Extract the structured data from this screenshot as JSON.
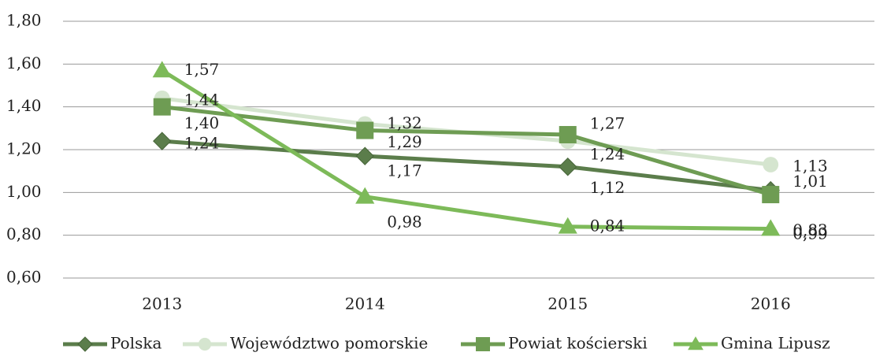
{
  "chart_data": {
    "type": "line",
    "categories": [
      "2013",
      "2014",
      "2015",
      "2016"
    ],
    "series": [
      {
        "name": "Polska",
        "color": "#5b7d4b",
        "marker": "diamond",
        "values": [
          1.24,
          1.17,
          1.12,
          1.01
        ],
        "value_labels": [
          "1,24",
          "1,17",
          "1,12",
          "1,01"
        ]
      },
      {
        "name": "Województwo pomorskie",
        "color": "#d5e5cf",
        "marker": "circle",
        "values": [
          1.44,
          1.32,
          1.24,
          1.13
        ],
        "value_labels": [
          "1,44",
          "1,32",
          "1,24",
          "1,13"
        ]
      },
      {
        "name": "Powiat kościerski",
        "color": "#6e9c53",
        "marker": "square",
        "values": [
          1.4,
          1.29,
          1.27,
          0.99
        ],
        "value_labels": [
          "1,40",
          "1,29",
          "1,27",
          "0,99"
        ]
      },
      {
        "name": "Gmina Lipusz",
        "color": "#7dba59",
        "marker": "triangle",
        "values": [
          1.57,
          0.98,
          0.84,
          0.83
        ],
        "value_labels": [
          "1,57",
          "0,98",
          "0,84",
          "0,83"
        ]
      }
    ],
    "ylim": [
      0.6,
      1.8
    ],
    "yticks": [
      {
        "value": 0.6,
        "label": "0,60"
      },
      {
        "value": 0.8,
        "label": "0,80"
      },
      {
        "value": 1.0,
        "label": "1,00"
      },
      {
        "value": 1.2,
        "label": "1,20"
      },
      {
        "value": 1.4,
        "label": "1,40"
      },
      {
        "value": 1.6,
        "label": "1,60"
      },
      {
        "value": 1.8,
        "label": "1,80"
      }
    ],
    "grid": true,
    "legend": "bottom"
  }
}
